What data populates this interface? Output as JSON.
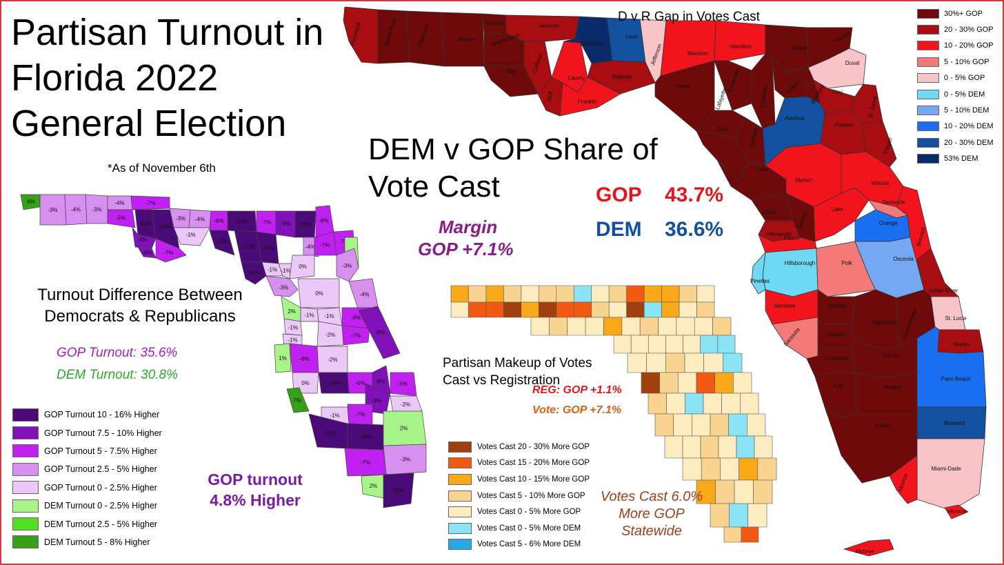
{
  "title": "Partisan Turnout in Florida 2022 General Election",
  "note": "*As of November 6th",
  "share": {
    "heading": "DEM v GOP Share of Vote Cast",
    "gop_label": "GOP",
    "gop_value": "43.7%",
    "dem_label": "DEM",
    "dem_value": "36.6%",
    "margin_label": "Margin",
    "margin_value": "GOP +7.1%",
    "colors": {
      "gop": "#e8141c",
      "dem": "#1450a0",
      "margin": "#8c1a8c"
    }
  },
  "gap_map": {
    "title": "D v R Gap in Votes Cast",
    "legend": [
      {
        "label": "30%+ GOP",
        "color": "#6e0a0a"
      },
      {
        "label": "20 - 30% GOP",
        "color": "#a80d12"
      },
      {
        "label": "10 - 20% GOP",
        "color": "#f2141c"
      },
      {
        "label": "5 - 10% GOP",
        "color": "#f47a7a"
      },
      {
        "label": "0 - 5% GOP",
        "color": "#f9c4c8"
      },
      {
        "label": "0 - 5% DEM",
        "color": "#6fd8f5"
      },
      {
        "label": "5 - 10% DEM",
        "color": "#74a8f2"
      },
      {
        "label": "10 - 20% DEM",
        "color": "#1a6ff0"
      },
      {
        "label": "20 - 30% DEM",
        "color": "#1450a0"
      },
      {
        "label": "53% DEM",
        "color": "#0a2a6a"
      }
    ],
    "counties": [
      {
        "name": "Escambia",
        "color": "#a80d12"
      },
      {
        "name": "Santa Rosa",
        "color": "#6e0a0a"
      },
      {
        "name": "Okaloosa",
        "color": "#6e0a0a"
      },
      {
        "name": "Walton",
        "color": "#6e0a0a"
      },
      {
        "name": "Holmes",
        "color": "#6e0a0a"
      },
      {
        "name": "Washington",
        "color": "#6e0a0a"
      },
      {
        "name": "Jackson",
        "color": "#a80d12"
      },
      {
        "name": "Bay",
        "color": "#6e0a0a"
      },
      {
        "name": "Calhoun",
        "color": "#a80d12"
      },
      {
        "name": "Gulf",
        "color": "#a80d12"
      },
      {
        "name": "Liberty",
        "color": "#f2141c"
      },
      {
        "name": "Gadsden",
        "color": "#0a2a6a"
      },
      {
        "name": "Leon",
        "color": "#1450a0"
      },
      {
        "name": "Wakulla",
        "color": "#a80d12"
      },
      {
        "name": "Franklin",
        "color": "#f2141c"
      },
      {
        "name": "Jefferson",
        "color": "#f9c4c8"
      },
      {
        "name": "Madison",
        "color": "#f2141c"
      },
      {
        "name": "Hamilton",
        "color": "#f2141c"
      },
      {
        "name": "Taylor",
        "color": "#6e0a0a"
      },
      {
        "name": "Suwannee",
        "color": "#6e0a0a"
      },
      {
        "name": "Lafayette",
        "color": "#6e0a0a"
      },
      {
        "name": "Columbia",
        "color": "#6e0a0a"
      },
      {
        "name": "Baker",
        "color": "#6e0a0a"
      },
      {
        "name": "Nassau",
        "color": "#6e0a0a"
      },
      {
        "name": "Duval",
        "color": "#f9c4c8"
      },
      {
        "name": "Union",
        "color": "#6e0a0a"
      },
      {
        "name": "Bradford",
        "color": "#6e0a0a"
      },
      {
        "name": "Clay",
        "color": "#a80d12"
      },
      {
        "name": "St. Johns",
        "color": "#a80d12"
      },
      {
        "name": "Dixie",
        "color": "#6e0a0a"
      },
      {
        "name": "Gilchrist",
        "color": "#6e0a0a"
      },
      {
        "name": "Alachua",
        "color": "#1450a0"
      },
      {
        "name": "Putnam",
        "color": "#a80d12"
      },
      {
        "name": "Flagler",
        "color": "#a80d12"
      },
      {
        "name": "Levy",
        "color": "#6e0a0a"
      },
      {
        "name": "Marion",
        "color": "#f2141c"
      },
      {
        "name": "Volusia",
        "color": "#f2141c"
      },
      {
        "name": "Citrus",
        "color": "#6e0a0a"
      },
      {
        "name": "Sumter",
        "color": "#6e0a0a"
      },
      {
        "name": "Lake",
        "color": "#f2141c"
      },
      {
        "name": "Seminole",
        "color": "#f47a7a"
      },
      {
        "name": "Hernando",
        "color": "#a80d12"
      },
      {
        "name": "Orange",
        "color": "#1a6ff0"
      },
      {
        "name": "Brevard",
        "color": "#f2141c"
      },
      {
        "name": "Pasco",
        "color": "#f2141c"
      },
      {
        "name": "Hillsborough",
        "color": "#6fd8f5"
      },
      {
        "name": "Pinellas",
        "color": "#6fd8f5"
      },
      {
        "name": "Polk",
        "color": "#f47a7a"
      },
      {
        "name": "Osceola",
        "color": "#74a8f2"
      },
      {
        "name": "Indian River",
        "color": "#a80d12"
      },
      {
        "name": "Manatee",
        "color": "#f2141c"
      },
      {
        "name": "Hardee",
        "color": "#6e0a0a"
      },
      {
        "name": "Highlands",
        "color": "#6e0a0a"
      },
      {
        "name": "Okeechobee",
        "color": "#6e0a0a"
      },
      {
        "name": "St. Lucie",
        "color": "#f9c4c8"
      },
      {
        "name": "Sarasota",
        "color": "#f47a7a"
      },
      {
        "name": "DeSoto",
        "color": "#6e0a0a"
      },
      {
        "name": "Martin",
        "color": "#a80d12"
      },
      {
        "name": "Charlotte",
        "color": "#6e0a0a"
      },
      {
        "name": "Glades",
        "color": "#6e0a0a"
      },
      {
        "name": "Palm Beach",
        "color": "#1a6ff0"
      },
      {
        "name": "Lee",
        "color": "#6e0a0a"
      },
      {
        "name": "Hendry",
        "color": "#6e0a0a"
      },
      {
        "name": "Collier",
        "color": "#6e0a0a"
      },
      {
        "name": "Broward",
        "color": "#1450a0"
      },
      {
        "name": "Miami-Dade",
        "color": "#f9c4c8"
      },
      {
        "name": "Monroe",
        "color": "#f2141c"
      },
      {
        "name": "Monroe",
        "color": "#f2141c"
      },
      {
        "name": "Monroe",
        "color": "#f2141c"
      }
    ]
  },
  "turnout_map": {
    "title": "Turnout Difference Between Democrats & Republicans",
    "gop_turnout": "GOP Turnout:  35.6%",
    "dem_turnout": "DEM Turnout:  30.8%",
    "summary": "GOP turnout 4.8% Higher",
    "colors": {
      "gop_text": "#a020c8",
      "dem_text": "#2aaa2a",
      "summary_text": "#7a1aa8"
    },
    "legend": [
      {
        "label": "GOP Turnout 10 - 16% Higher",
        "color": "#4a0a78"
      },
      {
        "label": "GOP Turnout 7.5 - 10% Higher",
        "color": "#8010b8"
      },
      {
        "label": "GOP Turnout 5 - 7.5% Higher",
        "color": "#c020f0"
      },
      {
        "label": "GOP Turnout 2.5 - 5% Higher",
        "color": "#d890f0"
      },
      {
        "label": "GOP Turnout 0 - 2.5% Higher",
        "color": "#ecc8f8"
      },
      {
        "label": "DEM Turnout 0 - 2.5% Higher",
        "color": "#a8f48a"
      },
      {
        "label": "DEM Turnout 2.5 - 5% Higher",
        "color": "#50e020"
      },
      {
        "label": "DEM Turnout 5 - 8% Higher",
        "color": "#36a018"
      }
    ],
    "values": [
      "6%",
      "-3%",
      "-4%",
      "-3%",
      "-4%",
      "-5%",
      "-7%",
      "-12%",
      "-10%",
      "-8%",
      "-9%",
      "-7%",
      "-3%",
      "-4%",
      "-1%",
      "-6%",
      "-10%",
      "-12%",
      "-7%",
      "-9%",
      "-12%",
      "-15%",
      "-15%",
      "-4%",
      "-6%",
      "-1%",
      "-1%",
      "0%",
      "-10%",
      "-7%",
      "-7%",
      "2%",
      "-3%",
      "0%",
      "-3%",
      "-4%",
      "2%",
      "-1%",
      "-1%",
      "-6%",
      "-7%",
      "-1%",
      "-1%",
      "-2%",
      "-8%",
      "1%",
      "-6%",
      "-2%",
      "0%",
      "-14%",
      "-6%",
      "-9%",
      "-5%",
      "-2%",
      "7%",
      "-9%",
      "-1%",
      "-7%",
      "-10%",
      "-18%",
      "2%",
      "-7%",
      "-3%",
      "2%",
      "-11%"
    ]
  },
  "makeup_map": {
    "title": "Partisan Makeup of Votes Cast vs Registration",
    "reg": "REG:  GOP +1.1%",
    "vote": "Vote:  GOP +7.1%",
    "summary": "Votes Cast 6.0% More GOP Statewide",
    "colors": {
      "reg_text": "#e8141c",
      "vote_text": "#e06010",
      "summary_text": "#a0401a"
    },
    "legend": [
      {
        "label": "Votes Cast 20 - 30% More GOP",
        "color": "#a0400e"
      },
      {
        "label": "Votes Cast 15 - 20% More GOP",
        "color": "#f25a14"
      },
      {
        "label": "Votes Cast 10 - 15% More GOP",
        "color": "#f8a818"
      },
      {
        "label": "Votes Cast 5 - 10% More GOP",
        "color": "#f8d490"
      },
      {
        "label": "Votes Cast 0 - 5% More GOP",
        "color": "#fcecc0"
      },
      {
        "label": "Votes Cast 0 - 5% More DEM",
        "color": "#8ae4f6"
      },
      {
        "label": "Votes Cast 5 - 6% More DEM",
        "color": "#2aa8e6"
      }
    ]
  }
}
